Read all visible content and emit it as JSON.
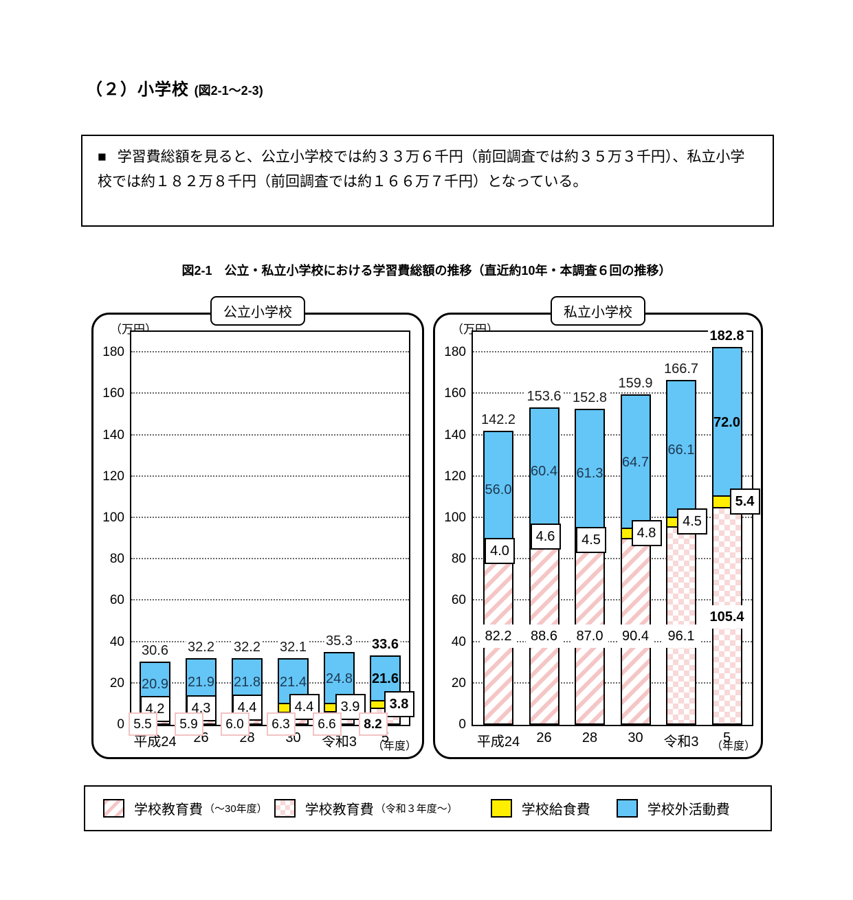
{
  "page": {
    "heading": "（２）小学校",
    "heading_ref": "(図2-1～2-3)",
    "bullet": "■",
    "summary": "学習費総額を見ると、公立小学校では約３３万６千円（前回調査では約３５万３千円）、私立小学校では約１８２万８千円（前回調査では約１６６万７千円）となっている。",
    "figure_caption": "図2-1　公立・私立小学校における学習費総額の推移（直近約10年・本調査６回の推移）"
  },
  "colors": {
    "activity_blue": "#63c6f7",
    "lunch_yellow": "#ffee00",
    "education_pink_stripe": "#f5c6c6",
    "education_pink_checker": "#f8d8d8",
    "border_black": "#000000"
  },
  "chart_data": [
    {
      "type": "bar",
      "stacked": true,
      "title": "公立小学校",
      "unit_label": "（万円）",
      "axis_suffix": "（年度）",
      "categories": [
        "平成24",
        "26",
        "28",
        "30",
        "令和3",
        "5"
      ],
      "ylim": [
        0,
        190
      ],
      "yticks": [
        0,
        20,
        40,
        60,
        80,
        100,
        120,
        140,
        160,
        180
      ],
      "grid": "dotted-horizontal",
      "series": [
        {
          "name": "学校教育費",
          "values": [
            5.5,
            5.9,
            6.0,
            6.3,
            6.6,
            8.2
          ]
        },
        {
          "name": "学校給食費",
          "values": [
            4.2,
            4.3,
            4.4,
            4.4,
            3.9,
            3.8
          ]
        },
        {
          "name": "学校外活動費",
          "values": [
            20.9,
            21.9,
            21.8,
            21.4,
            24.8,
            21.6
          ]
        }
      ],
      "totals": [
        30.6,
        32.2,
        32.2,
        32.1,
        35.3,
        33.6
      ],
      "pattern_by_category": [
        "stripe",
        "stripe",
        "stripe",
        "stripe",
        "checker",
        "checker"
      ],
      "emphasize_index": 5
    },
    {
      "type": "bar",
      "stacked": true,
      "title": "私立小学校",
      "unit_label": "（万円）",
      "axis_suffix": "（年度）",
      "categories": [
        "平成24",
        "26",
        "28",
        "30",
        "令和3",
        "5"
      ],
      "ylim": [
        0,
        190
      ],
      "yticks": [
        0,
        20,
        40,
        60,
        80,
        100,
        120,
        140,
        160,
        180
      ],
      "grid": "dotted-horizontal",
      "series": [
        {
          "name": "学校教育費",
          "values": [
            82.2,
            88.6,
            87.0,
            90.4,
            96.1,
            105.4
          ]
        },
        {
          "name": "学校給食費",
          "values": [
            4.0,
            4.6,
            4.5,
            4.8,
            4.5,
            5.4
          ]
        },
        {
          "name": "学校外活動費",
          "values": [
            56.0,
            60.4,
            61.3,
            64.7,
            66.1,
            72.0
          ]
        }
      ],
      "totals": [
        142.2,
        153.6,
        152.8,
        159.9,
        166.7,
        182.8
      ],
      "pattern_by_category": [
        "stripe",
        "stripe",
        "stripe",
        "stripe",
        "checker",
        "checker"
      ],
      "emphasize_index": 5
    }
  ],
  "legend": {
    "items": [
      {
        "label": "学校教育費",
        "sub": "（～30年度）",
        "pattern": "stripe"
      },
      {
        "label": "学校教育費",
        "sub": "（令和３年度～）",
        "pattern": "checker"
      },
      {
        "label": "学校給食費",
        "sub": "",
        "pattern": "solid",
        "color": "#ffee00"
      },
      {
        "label": "学校外活動費",
        "sub": "",
        "pattern": "solid",
        "color": "#63c6f7"
      }
    ]
  }
}
